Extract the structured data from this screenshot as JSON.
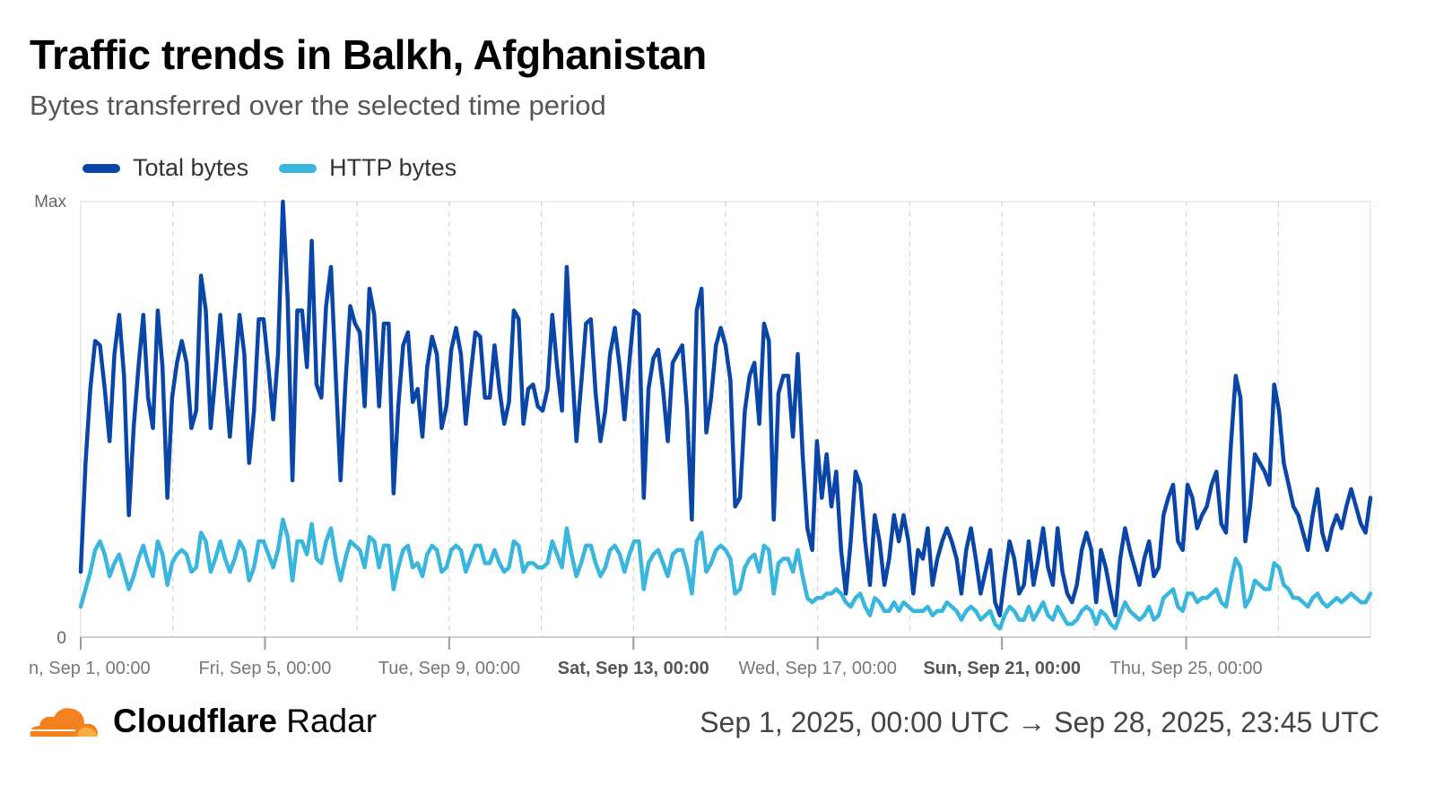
{
  "title": "Traffic trends in Balkh, Afghanistan",
  "subtitle": "Bytes transferred over the selected time period",
  "legend": [
    {
      "name": "Total bytes",
      "color": "#0a46a8"
    },
    {
      "name": "HTTP bytes",
      "color": "#38b6dd"
    }
  ],
  "footer": {
    "brand_bold": "Cloudflare",
    "brand_light": " Radar",
    "range": "Sep 1, 2025, 00:00 UTC → Sep 28, 2025, 23:45 UTC",
    "logo_icon": "cloudflare-cloud-icon",
    "logo_colors": [
      "#f48120",
      "#faad3f"
    ]
  },
  "chart_data": {
    "type": "line",
    "y_tick_labels": [
      "0",
      "Max"
    ],
    "ylim": [
      0,
      100
    ],
    "grid": "vertical dashed",
    "legend_position": "top-left",
    "x_tick_labels": [
      {
        "day": 0,
        "label": "n, Sep 1, 00:00",
        "bold": false
      },
      {
        "day": 4,
        "label": "Fri, Sep 5, 00:00",
        "bold": false
      },
      {
        "day": 8,
        "label": "Tue, Sep 9, 00:00",
        "bold": false
      },
      {
        "day": 12,
        "label": "Sat, Sep 13, 00:00",
        "bold": true
      },
      {
        "day": 16,
        "label": "Wed, Sep 17, 00:00",
        "bold": false
      },
      {
        "day": 20,
        "label": "Sun, Sep 21, 00:00",
        "bold": true
      },
      {
        "day": 24,
        "label": "Thu, Sep 25, 00:00",
        "bold": false
      }
    ],
    "x_range_days": [
      0,
      28
    ],
    "series": [
      {
        "name": "Total bytes",
        "color": "#0a46a8",
        "values": [
          15,
          40,
          57,
          68,
          67,
          57,
          45,
          65,
          74,
          60,
          28,
          48,
          62,
          74,
          55,
          48,
          75,
          62,
          32,
          55,
          63,
          68,
          63,
          48,
          52,
          83,
          75,
          48,
          60,
          74,
          60,
          46,
          60,
          74,
          65,
          40,
          52,
          73,
          73,
          62,
          50,
          65,
          100,
          78,
          36,
          75,
          75,
          62,
          91,
          58,
          55,
          76,
          85,
          60,
          36,
          58,
          76,
          72,
          70,
          53,
          80,
          74,
          53,
          72,
          72,
          33,
          53,
          67,
          70,
          54,
          57,
          46,
          62,
          69,
          65,
          48,
          53,
          66,
          71,
          65,
          49,
          60,
          70,
          69,
          55,
          55,
          67,
          57,
          49,
          54,
          75,
          73,
          49,
          57,
          58,
          53,
          52,
          57,
          74,
          62,
          52,
          85,
          64,
          45,
          58,
          72,
          73,
          56,
          45,
          52,
          65,
          71,
          62,
          50,
          63,
          75,
          74,
          32,
          57,
          64,
          66,
          57,
          45,
          63,
          65,
          67,
          52,
          27,
          75,
          80,
          47,
          55,
          67,
          71,
          67,
          59,
          30,
          32,
          52,
          60,
          63,
          49,
          72,
          68,
          27,
          56,
          60,
          60,
          46,
          65,
          42,
          25,
          20,
          45,
          32,
          42,
          30,
          38,
          20,
          10,
          22,
          38,
          35,
          22,
          12,
          28,
          22,
          12,
          18,
          28,
          22,
          28,
          22,
          10,
          20,
          18,
          25,
          12,
          18,
          22,
          25,
          22,
          18,
          10,
          20,
          25,
          18,
          10,
          15,
          20,
          8,
          5,
          14,
          22,
          18,
          10,
          12,
          22,
          12,
          18,
          25,
          16,
          12,
          25,
          15,
          10,
          8,
          12,
          20,
          24,
          20,
          8,
          20,
          16,
          10,
          5,
          18,
          25,
          20,
          16,
          12,
          18,
          22,
          14,
          16,
          28,
          32,
          35,
          22,
          20,
          35,
          32,
          25,
          28,
          30,
          35,
          38,
          26,
          24,
          44,
          60,
          55,
          22,
          30,
          42,
          40,
          38,
          35,
          58,
          52,
          40,
          35,
          30,
          28,
          24,
          20,
          28,
          34,
          24,
          20,
          25,
          28,
          25,
          30,
          34,
          30,
          26,
          24,
          32
        ],
        "compressed_values": [
          15,
          40,
          67,
          45,
          74,
          28,
          62,
          74,
          48,
          83,
          48,
          74,
          46,
          74,
          40,
          73,
          50,
          100,
          36,
          91,
          55,
          85,
          36,
          76,
          53,
          80,
          53,
          72,
          33,
          70,
          46,
          69,
          48,
          71,
          49,
          70,
          55,
          67,
          49,
          75,
          49,
          58,
          52,
          74,
          52,
          85,
          45,
          73,
          45,
          71,
          50,
          75,
          32,
          66,
          45,
          67,
          27,
          80,
          47,
          71,
          30,
          63,
          27,
          68,
          27,
          60,
          25,
          20,
          10,
          38,
          12,
          28,
          12,
          28,
          10,
          25,
          12,
          25,
          10,
          25,
          10,
          20,
          5,
          22,
          10,
          22,
          12,
          25,
          12,
          25,
          8,
          24,
          8,
          25,
          5,
          25,
          12,
          22,
          14,
          35,
          20,
          38,
          24,
          60,
          22,
          42,
          35,
          58,
          28,
          20,
          34,
          20,
          30,
          24,
          32
        ]
      },
      {
        "name": "HTTP bytes",
        "color": "#38b6dd",
        "values": [
          7,
          11,
          15,
          20,
          22,
          19,
          14,
          17,
          19,
          15,
          11,
          14,
          18,
          21,
          17,
          14,
          22,
          19,
          12,
          17,
          19,
          20,
          19,
          15,
          16,
          24,
          22,
          15,
          18,
          22,
          18,
          15,
          18,
          22,
          20,
          13,
          16,
          22,
          22,
          19,
          16,
          20,
          27,
          23,
          13,
          22,
          22,
          19,
          26,
          18,
          17,
          22,
          25,
          18,
          13,
          18,
          22,
          21,
          20,
          16,
          23,
          22,
          16,
          21,
          21,
          11,
          16,
          20,
          21,
          16,
          17,
          14,
          19,
          21,
          20,
          15,
          16,
          20,
          21,
          20,
          15,
          18,
          21,
          21,
          17,
          17,
          20,
          17,
          15,
          16,
          22,
          21,
          15,
          17,
          17,
          16,
          16,
          17,
          22,
          19,
          16,
          25,
          19,
          14,
          17,
          21,
          21,
          17,
          14,
          16,
          20,
          21,
          19,
          15,
          19,
          22,
          22,
          11,
          17,
          19,
          20,
          17,
          14,
          19,
          20,
          20,
          16,
          10,
          22,
          24,
          15,
          17,
          20,
          21,
          20,
          18,
          10,
          11,
          16,
          18,
          19,
          15,
          21,
          20,
          10,
          17,
          18,
          18,
          15,
          20,
          14,
          9,
          8,
          9,
          9,
          10,
          10,
          11,
          10,
          8,
          7,
          9,
          10,
          7,
          5,
          9,
          8,
          6,
          6,
          8,
          6,
          8,
          7,
          6,
          6,
          6,
          7,
          5,
          6,
          6,
          8,
          7,
          6,
          4,
          6,
          7,
          6,
          4,
          5,
          6,
          3,
          2,
          5,
          7,
          6,
          4,
          4,
          7,
          4,
          6,
          8,
          5,
          4,
          7,
          5,
          3,
          3,
          4,
          6,
          7,
          6,
          3,
          6,
          5,
          3,
          2,
          5,
          8,
          6,
          5,
          4,
          5,
          7,
          4,
          5,
          9,
          10,
          11,
          7,
          6,
          10,
          10,
          8,
          9,
          9,
          10,
          11,
          8,
          7,
          13,
          18,
          16,
          7,
          9,
          13,
          12,
          11,
          11,
          17,
          16,
          12,
          11,
          9,
          9,
          8,
          7,
          9,
          10,
          8,
          7,
          8,
          9,
          8,
          9,
          10,
          9,
          8,
          8,
          10
        ]
      }
    ]
  }
}
